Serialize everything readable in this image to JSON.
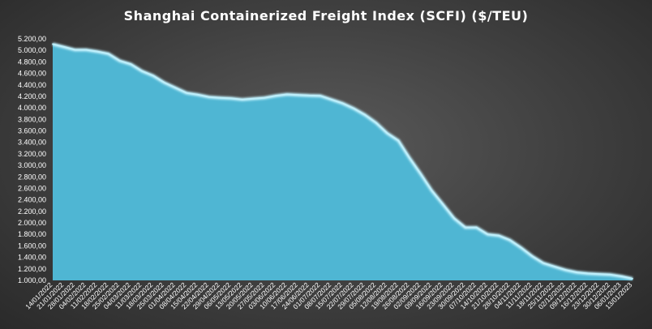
{
  "chart_data": {
    "type": "area",
    "title": "Shanghai  Containerized Freight Index  (SCFI) ($/TEU)",
    "xlabel": "",
    "ylabel": "",
    "ylim": [
      1000,
      5200
    ],
    "yticks": [
      1000,
      1200,
      1400,
      1600,
      1800,
      2000,
      2200,
      2400,
      2600,
      2800,
      3000,
      3200,
      3400,
      3600,
      3800,
      4000,
      4200,
      4400,
      4600,
      4800,
      5000,
      5200
    ],
    "ytick_labels": [
      "1.000,00",
      "1.200,00",
      "1.400,00",
      "1.600,00",
      "1.800,00",
      "2.000,00",
      "2.200,00",
      "2.400,00",
      "2.600,00",
      "2.800,00",
      "3.000,00",
      "3.200,00",
      "3.400,00",
      "3.600,00",
      "3.800,00",
      "4.000,00",
      "4.200,00",
      "4.400,00",
      "4.600,00",
      "4.800,00",
      "5.000,00",
      "5.200,00"
    ],
    "grid": false,
    "legend": "none",
    "colors": {
      "fill": "#4fb6d3",
      "line": "#bdeefa"
    },
    "categories": [
      "14/01/2022",
      "21/01/2022",
      "28/01/2022",
      "04/02/2022",
      "11/02/2022",
      "18/02/2022",
      "25/02/2022",
      "04/03/2022",
      "11/03/2022",
      "18/03/2022",
      "25/03/2022",
      "01/04/2022",
      "08/04/2022",
      "15/04/2022",
      "22/04/2022",
      "29/04/2022",
      "06/05/2022",
      "13/05/2022",
      "20/05/2022",
      "27/05/2022",
      "03/06/2022",
      "10/06/2022",
      "17/06/2022",
      "24/06/2022",
      "01/07/2022",
      "08/07/2022",
      "15/07/2022",
      "22/07/2022",
      "29/07/2022",
      "05/08/2022",
      "12/08/2022",
      "19/08/2022",
      "26/08/2022",
      "02/09/2022",
      "09/09/2022",
      "16/09/2022",
      "23/09/2022",
      "30/09/2022",
      "07/10/2022",
      "14/10/2022",
      "21/10/2022",
      "28/10/2022",
      "04/11/2022",
      "11/11/2022",
      "18/11/2022",
      "25/11/2022",
      "02/12/2022",
      "09/12/2022",
      "16/12/2022",
      "23/12/2022",
      "30/12/2022",
      "06/01/2023",
      "13/01/2023"
    ],
    "values": [
      5110,
      5060,
      5010,
      5010,
      4980,
      4940,
      4820,
      4760,
      4640,
      4560,
      4440,
      4350,
      4260,
      4230,
      4190,
      4175,
      4165,
      4145,
      4160,
      4175,
      4210,
      4235,
      4225,
      4215,
      4210,
      4145,
      4080,
      3990,
      3880,
      3740,
      3560,
      3430,
      3130,
      2850,
      2560,
      2320,
      2080,
      1920,
      1920,
      1800,
      1780,
      1700,
      1570,
      1420,
      1300,
      1240,
      1180,
      1140,
      1120,
      1110,
      1100,
      1070,
      1030
    ]
  }
}
